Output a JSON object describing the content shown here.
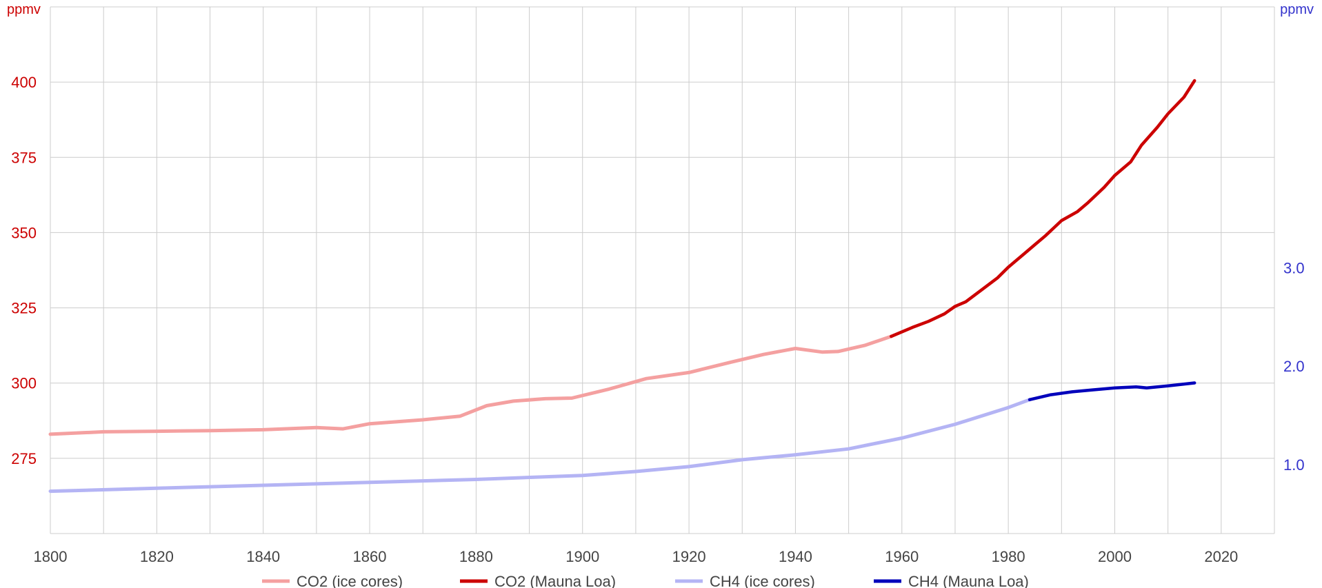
{
  "chart_data": {
    "type": "line",
    "x_range": [
      1800,
      2030
    ],
    "x_ticks": [
      1800,
      1820,
      1840,
      1860,
      1880,
      1900,
      1920,
      1940,
      1960,
      1980,
      2000,
      2020
    ],
    "left_axis": {
      "unit": "ppmv",
      "range": [
        250,
        425
      ],
      "ticks": [
        275,
        300,
        325,
        350,
        375,
        400
      ],
      "color": "#cc0000"
    },
    "right_axis": {
      "unit": "ppmv",
      "range": [
        0.3,
        5.65
      ],
      "ticks": [
        "1.0",
        "2.0",
        "3.0"
      ],
      "color": "#3333cc"
    },
    "grid": true,
    "legend_position": "bottom",
    "series": [
      {
        "name": "CO2 (ice cores)",
        "axis": "left",
        "color": "#f4a0a0",
        "x": [
          1800,
          1810,
          1820,
          1830,
          1840,
          1850,
          1855,
          1860,
          1870,
          1877,
          1882,
          1887,
          1893,
          1898,
          1905,
          1912,
          1920,
          1928,
          1934,
          1940,
          1945,
          1948,
          1953,
          1958
        ],
        "y": [
          283,
          283.8,
          284,
          284.2,
          284.5,
          285.2,
          284.8,
          286.5,
          287.8,
          289,
          292.5,
          294,
          294.8,
          295,
          298,
          301.5,
          303.5,
          307,
          309.5,
          311.5,
          310.3,
          310.5,
          312.5,
          315.5
        ]
      },
      {
        "name": "CO2 (Mauna Loa)",
        "axis": "left",
        "color": "#cc0000",
        "x": [
          1958,
          1962,
          1965,
          1968,
          1970,
          1972,
          1975,
          1978,
          1980,
          1983,
          1985,
          1987,
          1990,
          1993,
          1995,
          1998,
          2000,
          2003,
          2005,
          2008,
          2010,
          2013,
          2015
        ],
        "y": [
          315.5,
          318.5,
          320.5,
          323,
          325.5,
          327,
          331,
          335,
          338.5,
          343,
          346,
          349,
          354,
          357,
          360,
          365,
          369,
          373.5,
          379,
          385,
          389.5,
          395,
          400.5
        ]
      },
      {
        "name": "CH4 (ice cores)",
        "axis": "right",
        "color": "#b4b4f4",
        "x": [
          1800,
          1820,
          1840,
          1860,
          1880,
          1900,
          1910,
          1920,
          1930,
          1940,
          1950,
          1960,
          1970,
          1980,
          1984
        ],
        "y": [
          0.73,
          0.76,
          0.79,
          0.82,
          0.85,
          0.89,
          0.93,
          0.98,
          1.05,
          1.1,
          1.16,
          1.27,
          1.41,
          1.58,
          1.66
        ]
      },
      {
        "name": "CH4 (Mauna Loa)",
        "axis": "right",
        "color": "#0000bb",
        "x": [
          1984,
          1988,
          1992,
          1996,
          2000,
          2004,
          2006,
          2010,
          2015
        ],
        "y": [
          1.66,
          1.71,
          1.74,
          1.76,
          1.78,
          1.79,
          1.78,
          1.8,
          1.83
        ]
      }
    ]
  }
}
